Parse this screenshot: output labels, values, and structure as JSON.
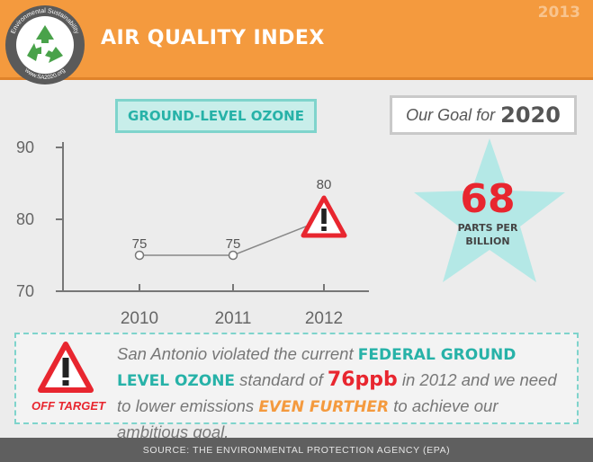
{
  "header": {
    "year": "2013",
    "title": "AIR QUALITY INDEX",
    "logo_top_text": "Environmental Sustainability",
    "logo_bottom_text": "www.SA2020.org"
  },
  "chart_data": {
    "type": "line",
    "title": "GROUND-LEVEL OZONE",
    "categories": [
      "2010",
      "2011",
      "2012"
    ],
    "values": [
      75,
      75,
      80
    ],
    "data_labels": [
      "75",
      "75",
      "80"
    ],
    "y_ticks": [
      "90",
      "80",
      "70"
    ],
    "ylim": [
      70,
      90
    ],
    "annotation": "warning-triangle-icon at 2012",
    "colors": {
      "line": "#888888",
      "axis": "#777777",
      "warning": "#e8262f"
    }
  },
  "goal": {
    "label": "Our Goal for",
    "year": "2020",
    "value": "68",
    "unit_line1": "PARTS PER",
    "unit_line2": "BILLION",
    "star_color": "#9ee3e1"
  },
  "note": {
    "badge": "OFF TARGET",
    "text_part1": "San Antonio violated the current ",
    "text_highlight1": "FEDERAL GROUND LEVEL OZONE",
    "text_part2": " standard of ",
    "text_highlight2": "76ppb",
    "text_part3": " in 2012 and we need to lower emissions ",
    "text_highlight3": "EVEN FURTHER",
    "text_part4": " to achieve our ambitious goal."
  },
  "footer": {
    "source": "SOURCE: THE ENVIRONMENTAL PROTECTION AGENCY (EPA)"
  }
}
